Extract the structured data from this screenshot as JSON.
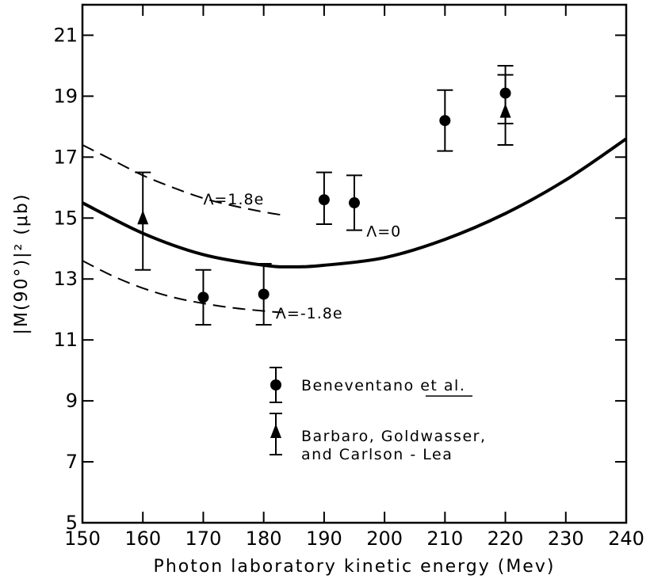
{
  "chart_data": {
    "type": "scatter",
    "xlabel": "Photon laboratory kinetic energy (Mev)",
    "ylabel": "|M(90°)|² (μb)",
    "xlim": [
      150,
      240
    ],
    "ylim": [
      5,
      22
    ],
    "x_ticks": [
      150,
      160,
      170,
      180,
      190,
      200,
      210,
      220,
      230,
      240
    ],
    "y_ticks": [
      5,
      7,
      9,
      11,
      13,
      15,
      17,
      19,
      21
    ],
    "grid": false,
    "legend_position": "bottom-center",
    "series": [
      {
        "name": "Beneventano et al.",
        "marker": "circle",
        "points": [
          {
            "x": 170,
            "y": 12.4,
            "y_low": 11.5,
            "y_high": 13.3
          },
          {
            "x": 180,
            "y": 12.5,
            "y_low": 11.5,
            "y_high": 13.5
          },
          {
            "x": 190,
            "y": 15.6,
            "y_low": 14.8,
            "y_high": 16.5
          },
          {
            "x": 195,
            "y": 15.5,
            "y_low": 14.6,
            "y_high": 16.4
          },
          {
            "x": 210,
            "y": 18.2,
            "y_low": 17.2,
            "y_high": 19.2
          },
          {
            "x": 220,
            "y": 19.1,
            "y_low": 18.1,
            "y_high": 20.0
          }
        ]
      },
      {
        "name": "Barbaro, Goldwasser, and Carlson - Lea",
        "legend_lines": [
          "Barbaro, Goldwasser,",
          "and Carlson - Lea"
        ],
        "marker": "triangle",
        "points": [
          {
            "x": 160,
            "y": 15.0,
            "y_low": 13.3,
            "y_high": 16.5
          },
          {
            "x": 220,
            "y": 18.5,
            "y_low": 17.4,
            "y_high": 19.7
          }
        ]
      }
    ],
    "curves": [
      {
        "label": "Λ = 0",
        "style": "solid",
        "points": [
          [
            150,
            15.5
          ],
          [
            160,
            14.5
          ],
          [
            170,
            13.8
          ],
          [
            180,
            13.45
          ],
          [
            185,
            13.4
          ],
          [
            190,
            13.45
          ],
          [
            200,
            13.7
          ],
          [
            210,
            14.3
          ],
          [
            220,
            15.15
          ],
          [
            230,
            16.25
          ],
          [
            240,
            17.6
          ]
        ]
      },
      {
        "label": "Λ = 1.8e",
        "style": "dashed",
        "points": [
          [
            150,
            17.4
          ],
          [
            155,
            16.9
          ],
          [
            160,
            16.4
          ],
          [
            165,
            16.0
          ],
          [
            170,
            15.65
          ],
          [
            175,
            15.4
          ],
          [
            180,
            15.2
          ],
          [
            183,
            15.1
          ]
        ]
      },
      {
        "label": "Λ = -1.8e",
        "style": "dashed",
        "points": [
          [
            150,
            13.6
          ],
          [
            155,
            13.1
          ],
          [
            160,
            12.7
          ],
          [
            165,
            12.4
          ],
          [
            170,
            12.2
          ],
          [
            175,
            12.05
          ],
          [
            180,
            11.95
          ],
          [
            183,
            11.9
          ]
        ]
      }
    ]
  }
}
